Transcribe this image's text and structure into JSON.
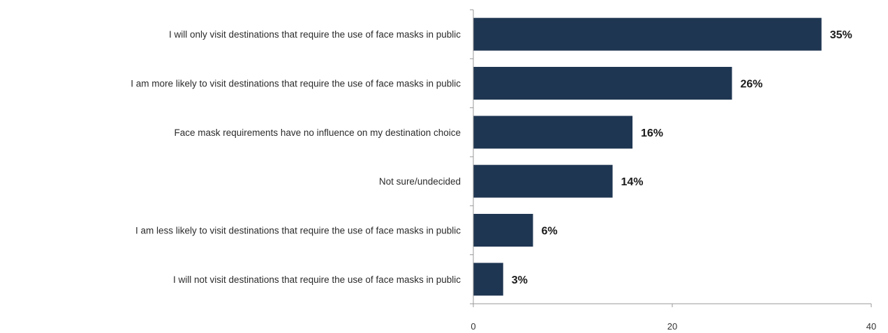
{
  "chart_data": {
    "type": "bar",
    "orientation": "horizontal",
    "categories": [
      "I will only visit destinations that require the use of face masks in public",
      "I am more likely to visit destinations that require the use of face masks in public",
      "Face mask requirements have no influence on my destination choice",
      "Not sure/undecided",
      "I am less likely to visit destinations that require the use of face masks in public",
      "I will not visit destinations that require the use of face masks in public"
    ],
    "values": [
      35,
      26,
      16,
      14,
      6,
      3
    ],
    "value_labels": [
      "35%",
      "26%",
      "16%",
      "14%",
      "6%",
      "3%"
    ],
    "x_ticks": [
      0,
      20,
      40
    ],
    "x_tick_labels": [
      "0",
      "20",
      "40"
    ],
    "xlim": [
      0,
      40
    ],
    "title": "",
    "xlabel": "",
    "ylabel": "",
    "grid": false,
    "legend": "none",
    "bar_color": "#1f3652"
  }
}
